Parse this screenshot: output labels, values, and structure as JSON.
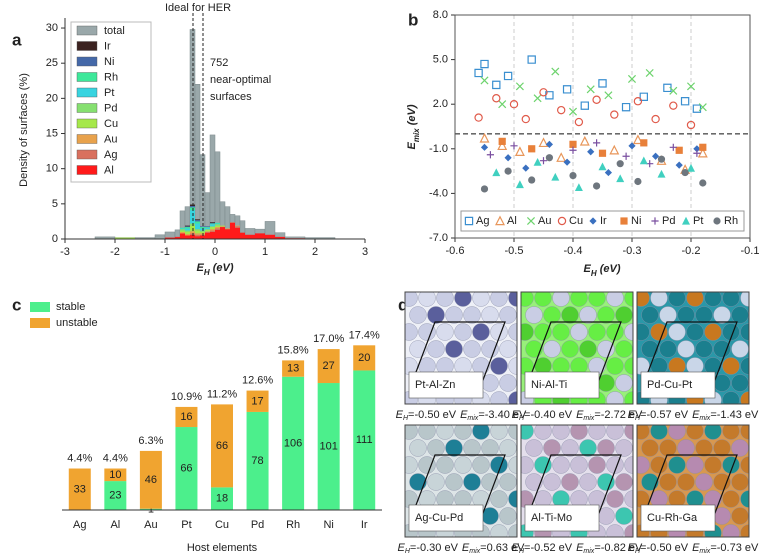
{
  "chart_data": [
    {
      "type": "histogram",
      "label": "a",
      "title": "Ideal for HER",
      "annotations": [
        "752",
        "near-optimal",
        "surfaces"
      ],
      "x_label": [
        "E",
        "H",
        " (eV)"
      ],
      "y_label": "Density of surfaces (%)",
      "xlim": [
        -3,
        3
      ],
      "xticks": [
        -3,
        -2,
        -1,
        0,
        1,
        2,
        3
      ],
      "ylim": [
        0,
        31
      ],
      "yticks": [
        0,
        5,
        10,
        15,
        20,
        25,
        30
      ],
      "ref_lines_x": [
        -0.44,
        -0.24
      ],
      "bins": [
        -2.4,
        -2.0,
        -1.6,
        -1.2,
        -1.0,
        -0.8,
        -0.7,
        -0.6,
        -0.5,
        -0.4,
        -0.3,
        -0.2,
        -0.1,
        0,
        0.1,
        0.2,
        0.3,
        0.4,
        0.5,
        0.6,
        0.8,
        1.0,
        1.2,
        1.4,
        1.8,
        2.4
      ],
      "legend": "upper left",
      "series": [
        {
          "name": "total",
          "color": "#9aa8aa",
          "stack": false,
          "values": [
            0.3,
            0.2,
            0.2,
            0.6,
            1.0,
            1.3,
            4.0,
            4.6,
            29.8,
            22.0,
            12.0,
            6.6,
            14.8,
            12.4,
            5.3,
            4.6,
            3.5,
            3.3,
            2.6,
            1.5,
            1.4,
            2.5,
            0.9,
            0.3,
            0.2
          ]
        },
        {
          "name": "Ir",
          "color": "#3b2220",
          "values": [
            0,
            0,
            0,
            0,
            0,
            0,
            0,
            0.1,
            0.2,
            0.1,
            0,
            0,
            0.1,
            0,
            0,
            0,
            0,
            0,
            0,
            0,
            0,
            0,
            0,
            0,
            0
          ]
        },
        {
          "name": "Ni",
          "color": "#4468a8",
          "values": [
            0,
            0,
            0,
            0,
            0,
            0,
            0,
            0.1,
            0.2,
            0.2,
            0.1,
            0.1,
            0.1,
            0,
            0,
            0,
            0,
            0,
            0,
            0,
            0,
            0,
            0,
            0,
            0
          ]
        },
        {
          "name": "Rh",
          "color": "#3de89a",
          "values": [
            0,
            0,
            0,
            0,
            0,
            0,
            0.1,
            0.2,
            0.4,
            0.3,
            0.2,
            0.1,
            0.1,
            0.1,
            0,
            0,
            0,
            0,
            0,
            0,
            0,
            0,
            0,
            0,
            0
          ]
        },
        {
          "name": "Pt",
          "color": "#38d4e0",
          "values": [
            0,
            0,
            0,
            0,
            0,
            0,
            0.1,
            0.3,
            1.9,
            0.8,
            0.3,
            0.2,
            0.3,
            0.1,
            0,
            0,
            0,
            0,
            0,
            0,
            0,
            0,
            0,
            0,
            0
          ]
        },
        {
          "name": "Pd",
          "color": "#86e070",
          "values": [
            0,
            0,
            0,
            0,
            0,
            0,
            0.2,
            0.2,
            0.3,
            0.2,
            0.2,
            0.1,
            0.1,
            0.2,
            0,
            0,
            0,
            0,
            0,
            0,
            0,
            0,
            0,
            0,
            0
          ]
        },
        {
          "name": "Cu",
          "color": "#a6e84a",
          "values": [
            0,
            0.2,
            0,
            0,
            0,
            0,
            0.2,
            0.3,
            0.8,
            0.4,
            0.2,
            0.2,
            0.3,
            0.2,
            0.1,
            0,
            0,
            0,
            0,
            0,
            0,
            0,
            0,
            0,
            0
          ]
        },
        {
          "name": "Au",
          "color": "#e8a24c",
          "values": [
            0,
            0,
            0,
            0,
            0,
            0,
            0.2,
            0.2,
            0.3,
            0.2,
            0.2,
            0.1,
            0.2,
            0.2,
            0.1,
            0.1,
            0,
            0.1,
            0,
            0,
            0,
            0,
            0,
            0,
            0
          ]
        },
        {
          "name": "Ag",
          "color": "#d9705e",
          "values": [
            0,
            0,
            0,
            0,
            0,
            0,
            0,
            0,
            0.2,
            0.2,
            0.1,
            0.1,
            0.2,
            0.2,
            0,
            0,
            0.1,
            0.2,
            0,
            0,
            0,
            0,
            0,
            0,
            0
          ]
        },
        {
          "name": "Al",
          "color": "#ff1a1a",
          "values": [
            0,
            0,
            0,
            0,
            0.2,
            0.3,
            0.8,
            0.5,
            0.6,
            0.4,
            0.5,
            0.9,
            1.0,
            1.3,
            1.7,
            1.4,
            2.3,
            1.6,
            0.9,
            0.6,
            0.8,
            0.6,
            0.3,
            0.1,
            0
          ]
        }
      ]
    },
    {
      "type": "scatter",
      "label": "b",
      "x_label": [
        "E",
        "H",
        " (eV)"
      ],
      "y_label": [
        "E",
        "mix",
        " (eV)"
      ],
      "xlim": [
        -0.6,
        -0.1
      ],
      "xticks": [
        -0.6,
        -0.5,
        -0.4,
        -0.3,
        -0.2,
        -0.1
      ],
      "ylim": [
        -7,
        8
      ],
      "yticks": [
        {
          "value": -7,
          "label": "-7.0"
        },
        {
          "value": -4,
          "label": "-4.0"
        },
        {
          "value": -1,
          "label": "-1.0"
        },
        {
          "value": 2,
          "label": "2.0"
        },
        {
          "value": 5,
          "label": "5.0"
        },
        {
          "value": 8,
          "label": "8.0"
        }
      ],
      "grid": "x",
      "ref_lines_y": [
        0
      ],
      "legend": "lower center",
      "series": [
        {
          "name": "Ag",
          "color": "#3a8fd0",
          "marker": "square-open",
          "x": [
            -0.56,
            -0.55,
            -0.53,
            -0.51,
            -0.47,
            -0.44,
            -0.41,
            -0.38,
            -0.35,
            -0.31,
            -0.28,
            -0.24,
            -0.21,
            -0.19
          ],
          "values": [
            4.1,
            4.7,
            3.3,
            3.9,
            5.0,
            2.6,
            3.0,
            1.9,
            3.4,
            1.8,
            2.5,
            3.1,
            2.2,
            1.7
          ]
        },
        {
          "name": "Al",
          "color": "#e8965a",
          "marker": "triangle-open",
          "x": [
            -0.55,
            -0.52,
            -0.49,
            -0.45,
            -0.42,
            -0.38,
            -0.33,
            -0.29,
            -0.25,
            -0.21,
            -0.18
          ],
          "values": [
            -0.3,
            -0.8,
            -1.2,
            -0.6,
            -1.6,
            -0.5,
            -1.1,
            -0.4,
            -1.8,
            -2.4,
            -1.3
          ]
        },
        {
          "name": "Au",
          "color": "#6dd36d",
          "marker": "x",
          "x": [
            -0.55,
            -0.52,
            -0.49,
            -0.46,
            -0.43,
            -0.4,
            -0.37,
            -0.34,
            -0.3,
            -0.27,
            -0.23,
            -0.2,
            -0.18
          ],
          "values": [
            3.6,
            2.0,
            3.2,
            2.4,
            4.2,
            1.5,
            3.0,
            2.6,
            3.7,
            4.1,
            2.9,
            3.2,
            1.8
          ]
        },
        {
          "name": "Cu",
          "color": "#e05a4a",
          "marker": "circle-open",
          "x": [
            -0.56,
            -0.53,
            -0.5,
            -0.48,
            -0.45,
            -0.42,
            -0.39,
            -0.36,
            -0.33,
            -0.29,
            -0.26,
            -0.23,
            -0.2
          ],
          "values": [
            1.1,
            2.4,
            2.0,
            1.0,
            2.8,
            1.6,
            0.8,
            2.3,
            1.3,
            2.2,
            1.0,
            1.9,
            0.6
          ]
        },
        {
          "name": "Ir",
          "color": "#3a70c0",
          "marker": "diamond",
          "x": [
            -0.55,
            -0.51,
            -0.48,
            -0.44,
            -0.41,
            -0.37,
            -0.34,
            -0.3,
            -0.26,
            -0.22,
            -0.19
          ],
          "values": [
            -0.9,
            -1.6,
            -2.3,
            -0.7,
            -1.9,
            -1.2,
            -2.6,
            -0.8,
            -1.5,
            -2.1,
            -1.0
          ]
        },
        {
          "name": "Ni",
          "color": "#e8803a",
          "marker": "square",
          "x": [
            -0.52,
            -0.47,
            -0.4,
            -0.35,
            -0.28,
            -0.22,
            -0.18
          ],
          "values": [
            -0.5,
            -1.0,
            -0.7,
            -1.3,
            -0.6,
            -1.1,
            -0.9
          ]
        },
        {
          "name": "Pd",
          "color": "#7a4fa0",
          "marker": "plus",
          "x": [
            -0.54,
            -0.5,
            -0.45,
            -0.4,
            -0.36,
            -0.31,
            -0.27,
            -0.23,
            -0.19
          ],
          "values": [
            -1.4,
            -0.8,
            -1.8,
            -1.1,
            -0.6,
            -1.5,
            -2.0,
            -0.9,
            -1.3
          ]
        },
        {
          "name": "Pt",
          "color": "#40d0c0",
          "marker": "triangle",
          "x": [
            -0.53,
            -0.49,
            -0.46,
            -0.43,
            -0.39,
            -0.35,
            -0.32,
            -0.28,
            -0.25,
            -0.2
          ],
          "values": [
            -2.6,
            -3.4,
            -1.9,
            -2.9,
            -3.6,
            -2.2,
            -3.0,
            -1.8,
            -2.7,
            -2.3
          ]
        },
        {
          "name": "Rh",
          "color": "#6e767e",
          "marker": "circle",
          "x": [
            -0.55,
            -0.51,
            -0.47,
            -0.44,
            -0.4,
            -0.36,
            -0.32,
            -0.29,
            -0.25,
            -0.21,
            -0.18
          ],
          "values": [
            -3.7,
            -2.5,
            -3.1,
            -1.6,
            -2.8,
            -3.5,
            -2.0,
            -3.2,
            -1.7,
            -2.6,
            -3.3
          ]
        }
      ]
    },
    {
      "type": "bar",
      "label": "c",
      "stacked": true,
      "x_label": "Host elements",
      "categories": [
        "Ag",
        "Al",
        "Au",
        "Pt",
        "Cu",
        "Pd",
        "Rh",
        "Ni",
        "Ir"
      ],
      "ylim": [
        0,
        140
      ],
      "legend": "upper left",
      "series": [
        {
          "name": "stable",
          "color": "#4cef8c",
          "values": [
            0,
            23,
            1,
            66,
            18,
            78,
            106,
            101,
            111
          ]
        },
        {
          "name": "unstable",
          "color": "#f0a430",
          "values": [
            33,
            10,
            46,
            16,
            66,
            17,
            13,
            27,
            20
          ]
        }
      ],
      "percentages": {
        "values": [
          4.4,
          4.4,
          6.3,
          10.9,
          11.2,
          12.6,
          15.8,
          17.0,
          17.4
        ],
        "value_labels": [
          "4.4%",
          "4.4%",
          "6.3%",
          "10.9%",
          "11.2%",
          "12.6%",
          "15.8%",
          "17.0%",
          "17.4%"
        ]
      }
    }
  ],
  "panel_d": {
    "label": "d",
    "symbols": {
      "e": "E",
      "h": "H",
      "mix": "mix",
      "eq": "="
    },
    "tiles": [
      {
        "name": "Pt-Al-Zn",
        "eh": "-0.50 eV",
        "emix": "-3.40 eV"
      },
      {
        "name": "Ni-Al-Ti",
        "eh": "-0.40 eV",
        "emix": "-2.72 eV"
      },
      {
        "name": "Pd-Cu-Pt",
        "eh": "-0.57 eV",
        "emix": "-1.43 eV"
      },
      {
        "name": "Ag-Cu-Pd",
        "eh": "-0.30 eV",
        "emix": "0.63 eV"
      },
      {
        "name": "Al-Ti-Mo",
        "eh": "-0.52 eV",
        "emix": "-0.82 eV"
      },
      {
        "name": "Cu-Rh-Ga",
        "eh": "-0.50 eV",
        "emix": "-0.73 eV"
      }
    ]
  }
}
